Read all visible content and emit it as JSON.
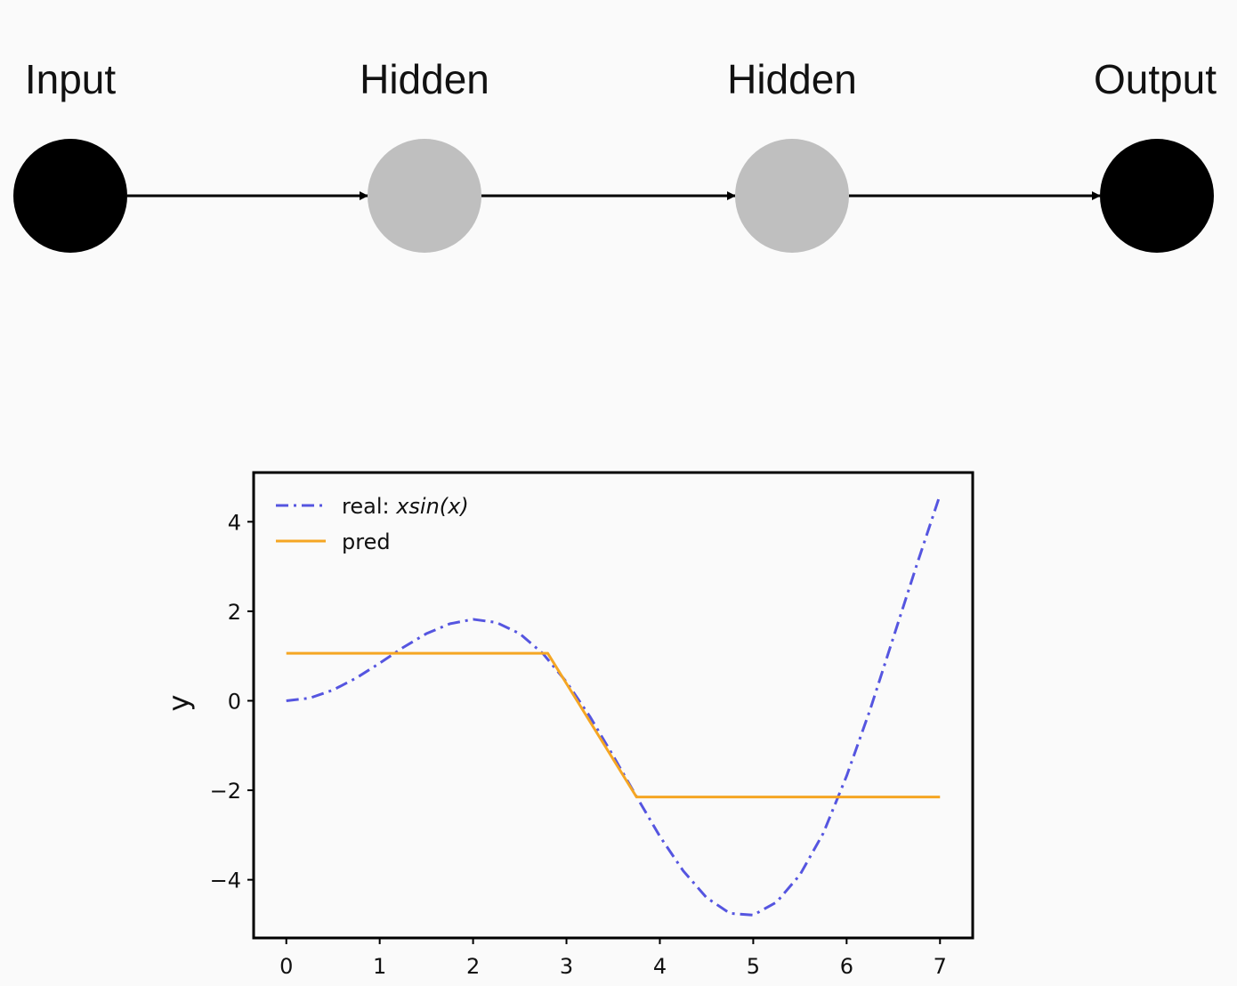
{
  "network": {
    "nodes": [
      {
        "label": "Input",
        "color": "#000000"
      },
      {
        "label": "Hidden",
        "color": "#bfbfbf"
      },
      {
        "label": "Hidden",
        "color": "#bfbfbf"
      },
      {
        "label": "Output",
        "color": "#000000"
      }
    ],
    "edge_color": "#000000"
  },
  "chart_data": {
    "type": "line",
    "title": "",
    "xlabel": "",
    "ylabel": "y",
    "xlim": [
      -0.35,
      7.35
    ],
    "ylim": [
      -5.3,
      5.1
    ],
    "xticks": [
      0,
      1,
      2,
      3,
      4,
      5,
      6,
      7
    ],
    "yticks": [
      4,
      2,
      0,
      -2,
      -4
    ],
    "yticklabels": [
      "4",
      "2",
      "0",
      "−2",
      "−4"
    ],
    "grid": false,
    "legend_position": "top-left",
    "series": [
      {
        "name": "real: ",
        "math_label": "xsin(x)",
        "color": "#5555e0",
        "style": "dash-dot",
        "x": [
          0,
          0.25,
          0.5,
          0.75,
          1.0,
          1.25,
          1.5,
          1.75,
          2.0,
          2.25,
          2.5,
          2.75,
          3.0,
          3.25,
          3.5,
          3.75,
          4.0,
          4.25,
          4.5,
          4.75,
          5.0,
          5.25,
          5.5,
          5.75,
          6.0,
          6.25,
          6.5,
          6.75,
          7.0
        ],
        "y": [
          0.0,
          0.06,
          0.24,
          0.51,
          0.84,
          1.19,
          1.5,
          1.72,
          1.82,
          1.75,
          1.5,
          1.05,
          0.42,
          -0.35,
          -1.23,
          -2.14,
          -3.03,
          -3.8,
          -4.4,
          -4.75,
          -4.79,
          -4.5,
          -3.89,
          -2.96,
          -1.68,
          -0.21,
          1.41,
          3.03,
          4.6
        ]
      },
      {
        "name": "pred",
        "color": "#f5a623",
        "style": "solid",
        "x": [
          0,
          2.8,
          3.75,
          7.0
        ],
        "y": [
          1.06,
          1.06,
          -2.15,
          -2.15
        ]
      }
    ]
  }
}
